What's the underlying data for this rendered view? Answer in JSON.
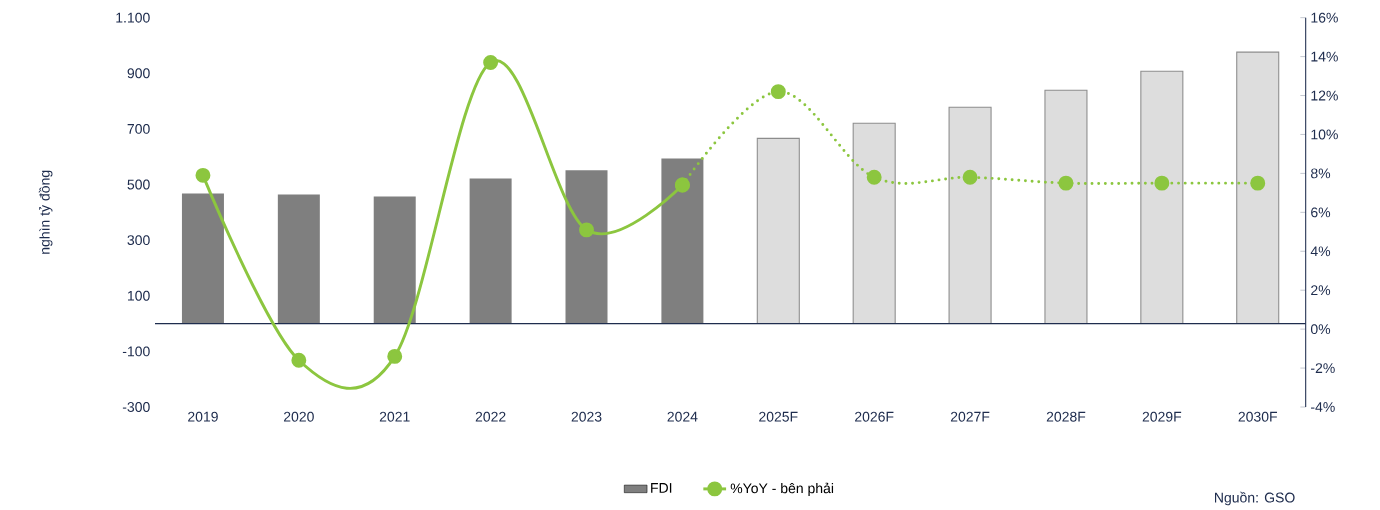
{
  "chart_data": {
    "type": "bar",
    "ylabel": "nghìn tỷ đồng",
    "categories": [
      "2019",
      "2020",
      "2021",
      "2022",
      "2023",
      "2024",
      "2025F",
      "2026F",
      "2027F",
      "2028F",
      "2029F",
      "2030F"
    ],
    "series": [
      {
        "name": "FDI",
        "color": "#7f7f7f",
        "values": [
          468,
          464,
          457,
          522,
          551,
          594,
          null,
          null,
          null,
          null,
          null,
          null
        ]
      },
      {
        "color": "#8c8c8c",
        "values": [
          null,
          null,
          null,
          null,
          null,
          null,
          666,
          720,
          778,
          839,
          907,
          976
        ]
      },
      {
        "name": "%YoY - bên phải",
        "type": "line",
        "axis": "y2",
        "color": "#8cc63f",
        "marker": "circle",
        "line_style": "solid",
        "values": [
          7.9,
          -1.6,
          -1.4,
          13.7,
          5.1,
          7.4,
          null,
          null,
          null,
          null,
          null,
          null
        ]
      },
      {
        "type": "line",
        "axis": "y2",
        "color": "#8cc63f",
        "marker": "circle",
        "line_style": "dotted",
        "values": [
          null,
          null,
          null,
          null,
          null,
          7.4,
          12.2,
          7.8,
          7.8,
          7.5,
          7.5,
          7.5
        ]
      }
    ],
    "ylim": [
      -300,
      1100
    ],
    "yticks": [
      -300,
      -100,
      100,
      300,
      500,
      700,
      900,
      {
        "value": 1100,
        "label": "1.100"
      }
    ],
    "y2lim": [
      -4,
      16
    ],
    "y2ticks": [
      {
        "value": -4,
        "label": "-4%"
      },
      {
        "value": -2,
        "label": "-2%"
      },
      {
        "value": 0,
        "label": "0%"
      },
      {
        "value": 2,
        "label": "2%"
      },
      {
        "value": 4,
        "label": "4%"
      },
      {
        "value": 6,
        "label": "6%"
      },
      {
        "value": 8,
        "label": "8%"
      },
      {
        "value": 10,
        "label": "10%"
      },
      {
        "value": 12,
        "label": "12%"
      },
      {
        "value": 14,
        "label": "14%"
      },
      {
        "value": 16,
        "label": "16%"
      }
    ],
    "legend": "bottom",
    "grid": false,
    "annotations": [
      "Nguồn: GSO"
    ]
  }
}
